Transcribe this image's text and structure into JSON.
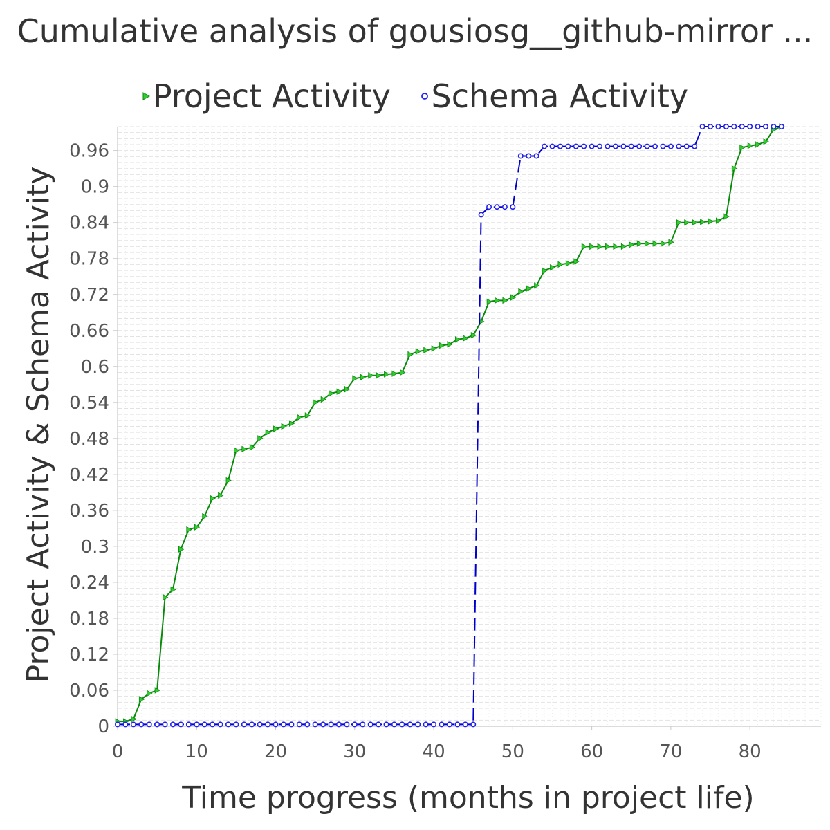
{
  "chart_data": {
    "type": "line",
    "title": "Cumulative analysis of gousiosg__github-mirror ...",
    "xlabel": "Time progress (months in project life)",
    "ylabel": "Project Activity & Schema Activity",
    "xlim": [
      0,
      89
    ],
    "ylim": [
      0,
      1.0
    ],
    "x_ticks": [
      0,
      10,
      20,
      30,
      40,
      50,
      60,
      70,
      80
    ],
    "y_ticks": [
      "0",
      "0.06",
      "0.12",
      "0.18",
      "0.24",
      "0.3",
      "0.36",
      "0.42",
      "0.48",
      "0.54",
      "0.6",
      "0.66",
      "0.72",
      "0.78",
      "0.84",
      "0.9",
      "0.96"
    ],
    "grid": true,
    "legend_position": "top",
    "series": [
      {
        "name": "Project Activity",
        "color": "#0a8a0a",
        "marker_color": "#33cc33",
        "marker": "triangle-right",
        "line_style": "solid",
        "x": [
          0,
          1,
          2,
          3,
          4,
          5,
          6,
          7,
          8,
          9,
          10,
          11,
          12,
          13,
          14,
          15,
          16,
          17,
          18,
          19,
          20,
          21,
          22,
          23,
          24,
          25,
          26,
          27,
          28,
          29,
          30,
          31,
          32,
          33,
          34,
          35,
          36,
          37,
          38,
          39,
          40,
          41,
          42,
          43,
          44,
          45,
          46,
          47,
          48,
          49,
          50,
          51,
          52,
          53,
          54,
          55,
          56,
          57,
          58,
          59,
          60,
          61,
          62,
          63,
          64,
          65,
          66,
          67,
          68,
          69,
          70,
          71,
          72,
          73,
          74,
          75,
          76,
          77,
          78,
          79,
          80,
          81,
          82,
          83,
          84
        ],
        "y": [
          0.008,
          0.008,
          0.012,
          0.045,
          0.055,
          0.06,
          0.215,
          0.228,
          0.295,
          0.328,
          0.332,
          0.35,
          0.38,
          0.385,
          0.41,
          0.46,
          0.462,
          0.465,
          0.48,
          0.49,
          0.496,
          0.5,
          0.505,
          0.515,
          0.518,
          0.54,
          0.545,
          0.555,
          0.558,
          0.562,
          0.58,
          0.582,
          0.585,
          0.585,
          0.587,
          0.588,
          0.59,
          0.62,
          0.625,
          0.627,
          0.63,
          0.635,
          0.637,
          0.645,
          0.647,
          0.652,
          0.675,
          0.708,
          0.71,
          0.71,
          0.715,
          0.725,
          0.73,
          0.735,
          0.76,
          0.765,
          0.77,
          0.772,
          0.775,
          0.8,
          0.8,
          0.8,
          0.8,
          0.8,
          0.8,
          0.803,
          0.805,
          0.805,
          0.805,
          0.805,
          0.807,
          0.84,
          0.84,
          0.84,
          0.841,
          0.842,
          0.843,
          0.85,
          0.93,
          0.965,
          0.968,
          0.97,
          0.975,
          0.995,
          1.0
        ]
      },
      {
        "name": "Schema Activity",
        "color": "#0000cc",
        "marker_color": "#2222ee",
        "marker": "circle",
        "line_style": "dashed",
        "x": [
          0,
          1,
          2,
          3,
          4,
          5,
          6,
          7,
          8,
          9,
          10,
          11,
          12,
          13,
          14,
          15,
          16,
          17,
          18,
          19,
          20,
          21,
          22,
          23,
          24,
          25,
          26,
          27,
          28,
          29,
          30,
          31,
          32,
          33,
          34,
          35,
          36,
          37,
          38,
          39,
          40,
          41,
          42,
          43,
          44,
          45,
          46,
          47,
          48,
          49,
          50,
          51,
          52,
          53,
          54,
          55,
          56,
          57,
          58,
          59,
          60,
          61,
          62,
          63,
          64,
          65,
          66,
          67,
          68,
          69,
          70,
          71,
          72,
          73,
          74,
          75,
          76,
          77,
          78,
          79,
          80,
          81,
          82,
          83,
          84
        ],
        "y": [
          0.003,
          0.003,
          0.003,
          0.003,
          0.003,
          0.003,
          0.003,
          0.003,
          0.003,
          0.003,
          0.003,
          0.003,
          0.003,
          0.003,
          0.003,
          0.003,
          0.003,
          0.003,
          0.003,
          0.003,
          0.003,
          0.003,
          0.003,
          0.003,
          0.003,
          0.003,
          0.003,
          0.003,
          0.003,
          0.003,
          0.003,
          0.003,
          0.003,
          0.003,
          0.003,
          0.003,
          0.003,
          0.003,
          0.003,
          0.003,
          0.003,
          0.003,
          0.003,
          0.003,
          0.003,
          0.003,
          0.853,
          0.866,
          0.866,
          0.866,
          0.866,
          0.951,
          0.951,
          0.951,
          0.967,
          0.967,
          0.967,
          0.967,
          0.967,
          0.967,
          0.967,
          0.967,
          0.967,
          0.967,
          0.967,
          0.967,
          0.967,
          0.967,
          0.967,
          0.967,
          0.967,
          0.967,
          0.967,
          0.967,
          1.0,
          1.0,
          1.0,
          1.0,
          1.0,
          1.0,
          1.0,
          1.0,
          1.0,
          1.0,
          1.0
        ]
      }
    ]
  }
}
